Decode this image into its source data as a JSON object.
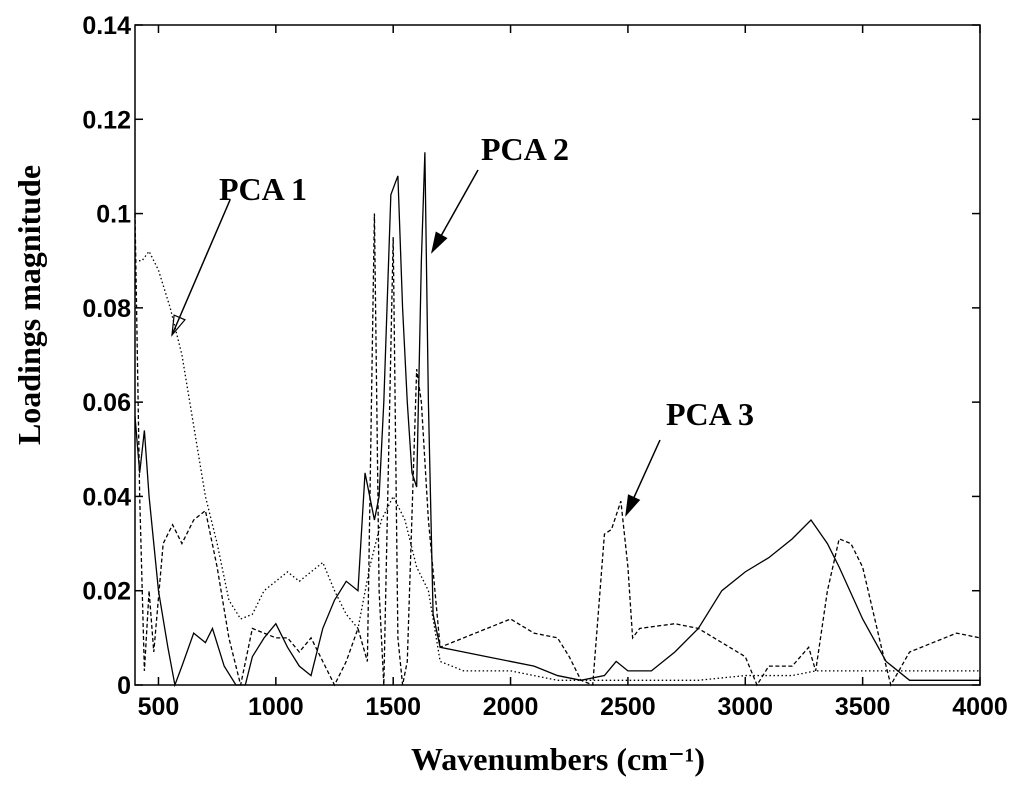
{
  "chart_data": {
    "type": "line",
    "xlabel": "Wavenumbers (cm⁻¹)",
    "ylabel": "Loadings magnitude",
    "xlim": [
      400,
      4000
    ],
    "xticks": [
      500,
      1000,
      1500,
      2000,
      2500,
      3000,
      3500,
      4000
    ],
    "ylim": [
      0,
      0.14
    ],
    "yticks": [
      0,
      0.02,
      0.04,
      0.06,
      0.08,
      0.1,
      0.12,
      0.14
    ],
    "grid": false,
    "series": [
      {
        "name": "PCA 1",
        "color": "#000000",
        "dash": "dotted",
        "x": [
          400,
          430,
          460,
          500,
          550,
          600,
          650,
          700,
          750,
          800,
          850,
          900,
          950,
          1000,
          1050,
          1100,
          1150,
          1200,
          1250,
          1300,
          1350,
          1400,
          1450,
          1500,
          1550,
          1600,
          1650,
          1700,
          1800,
          2000,
          2200,
          2400,
          2600,
          2800,
          3000,
          3200,
          3300,
          3500,
          3700,
          4000
        ],
        "values": [
          0.09,
          0.09,
          0.092,
          0.088,
          0.08,
          0.07,
          0.055,
          0.04,
          0.03,
          0.018,
          0.014,
          0.015,
          0.02,
          0.022,
          0.024,
          0.022,
          0.024,
          0.026,
          0.02,
          0.015,
          0.012,
          0.025,
          0.035,
          0.04,
          0.035,
          0.025,
          0.02,
          0.005,
          0.003,
          0.003,
          0.001,
          0.001,
          0.001,
          0.001,
          0.002,
          0.002,
          0.003,
          0.003,
          0.003,
          0.003
        ]
      },
      {
        "name": "PCA 2",
        "color": "#000000",
        "dash": "solid",
        "x": [
          400,
          420,
          440,
          460,
          480,
          500,
          540,
          570,
          600,
          650,
          700,
          730,
          780,
          830,
          870,
          900,
          950,
          1000,
          1050,
          1100,
          1150,
          1200,
          1250,
          1300,
          1350,
          1380,
          1400,
          1420,
          1440,
          1460,
          1490,
          1520,
          1540,
          1560,
          1580,
          1600,
          1620,
          1635,
          1650,
          1670,
          1700,
          1800,
          1900,
          2000,
          2100,
          2200,
          2300,
          2400,
          2450,
          2500,
          2600,
          2700,
          2800,
          2900,
          3000,
          3100,
          3200,
          3280,
          3350,
          3400,
          3500,
          3600,
          3700,
          3800,
          3900,
          4000
        ],
        "values": [
          0.057,
          0.045,
          0.054,
          0.04,
          0.03,
          0.02,
          0.008,
          0,
          0.004,
          0.011,
          0.009,
          0.012,
          0.004,
          0,
          0,
          0.006,
          0.01,
          0.013,
          0.008,
          0.004,
          0.002,
          0.012,
          0.018,
          0.022,
          0.02,
          0.045,
          0.04,
          0.035,
          0.04,
          0.06,
          0.104,
          0.108,
          0.08,
          0.06,
          0.045,
          0.042,
          0.09,
          0.113,
          0.06,
          0.015,
          0.008,
          0.007,
          0.006,
          0.005,
          0.004,
          0.002,
          0.001,
          0.002,
          0.005,
          0.003,
          0.003,
          0.007,
          0.012,
          0.02,
          0.024,
          0.027,
          0.031,
          0.035,
          0.03,
          0.025,
          0.014,
          0.005,
          0.001,
          0.001,
          0.001,
          0.001
        ]
      },
      {
        "name": "PCA 3",
        "color": "#000000",
        "dash": "dashed",
        "x": [
          400,
          420,
          440,
          460,
          480,
          520,
          560,
          600,
          650,
          700,
          750,
          800,
          850,
          900,
          1000,
          1050,
          1100,
          1150,
          1200,
          1250,
          1300,
          1350,
          1390,
          1420,
          1440,
          1460,
          1500,
          1520,
          1540,
          1560,
          1600,
          1620,
          1650,
          1700,
          1800,
          1900,
          2000,
          2100,
          2200,
          2250,
          2300,
          2350,
          2400,
          2430,
          2470,
          2500,
          2520,
          2550,
          2700,
          2800,
          2900,
          3000,
          3050,
          3100,
          3200,
          3270,
          3300,
          3350,
          3400,
          3450,
          3500,
          3580,
          3620,
          3700,
          3800,
          3900,
          4000
        ],
        "values": [
          0.1,
          0.04,
          0.003,
          0.02,
          0.007,
          0.03,
          0.034,
          0.03,
          0.035,
          0.037,
          0.025,
          0.01,
          0,
          0.012,
          0.01,
          0.01,
          0.007,
          0.01,
          0.005,
          0,
          0.005,
          0.012,
          0.005,
          0.1,
          0.02,
          0,
          0.095,
          0.01,
          0,
          0.005,
          0.067,
          0.06,
          0.035,
          0.008,
          0.01,
          0.012,
          0.014,
          0.011,
          0.01,
          0.006,
          0.001,
          0,
          0.032,
          0.033,
          0.039,
          0.025,
          0.01,
          0.012,
          0.013,
          0.012,
          0.009,
          0.006,
          0,
          0.004,
          0.004,
          0.008,
          0.003,
          0.02,
          0.031,
          0.03,
          0.025,
          0.008,
          0,
          0.007,
          0.009,
          0.011,
          0.01
        ]
      }
    ]
  }
}
